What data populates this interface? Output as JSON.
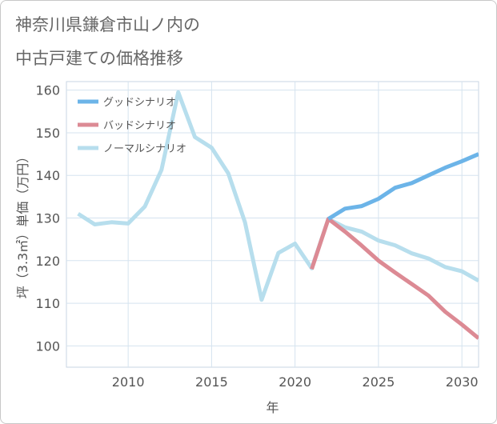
{
  "title_lines": [
    "神奈川県鎌倉市山ノ内の",
    "中古戸建ての価格推移"
  ],
  "chart_data": {
    "type": "line",
    "xlabel": "年",
    "ylabel": "坪（3.3㎡）単価（万円）",
    "xlim": [
      2006.3,
      2031.0
    ],
    "ylim": [
      95,
      162
    ],
    "xticks": [
      2010,
      2015,
      2020,
      2025,
      2030
    ],
    "yticks": [
      100,
      110,
      120,
      130,
      140,
      150,
      160
    ],
    "grid": true,
    "legend_position": "top-left",
    "series": [
      {
        "name": "グッドシナリオ",
        "color": "#6cb4e8",
        "x": [
          2022,
          2023,
          2024,
          2025,
          2026,
          2027,
          2028,
          2029,
          2030,
          2031
        ],
        "y": [
          129.8,
          132.2,
          132.8,
          134.5,
          137.1,
          138.2,
          140.0,
          141.8,
          143.3,
          145.0
        ]
      },
      {
        "name": "バッドシナリオ",
        "color": "#dc8a94",
        "x": [
          2021,
          2022,
          2023,
          2024,
          2025,
          2026,
          2027,
          2028,
          2029,
          2030,
          2031
        ],
        "y": [
          118.0,
          129.8,
          126.8,
          123.5,
          120.0,
          117.2,
          114.5,
          111.8,
          108.0,
          105.0,
          101.8
        ]
      },
      {
        "name": "ノーマルシナリオ",
        "color": "#b7deed",
        "x": [
          2007,
          2008,
          2009,
          2010,
          2011,
          2012,
          2013,
          2014,
          2015,
          2016,
          2017,
          2018,
          2019,
          2020,
          2021,
          2022,
          2023,
          2024,
          2025,
          2026,
          2027,
          2028,
          2029,
          2030,
          2031
        ],
        "y": [
          131.0,
          128.5,
          129.0,
          128.7,
          132.7,
          141.3,
          159.5,
          149.0,
          146.5,
          140.5,
          129.0,
          110.8,
          121.8,
          124.0,
          118.2,
          129.8,
          127.8,
          126.8,
          124.7,
          123.6,
          121.7,
          120.5,
          118.5,
          117.5,
          115.3
        ]
      }
    ]
  }
}
